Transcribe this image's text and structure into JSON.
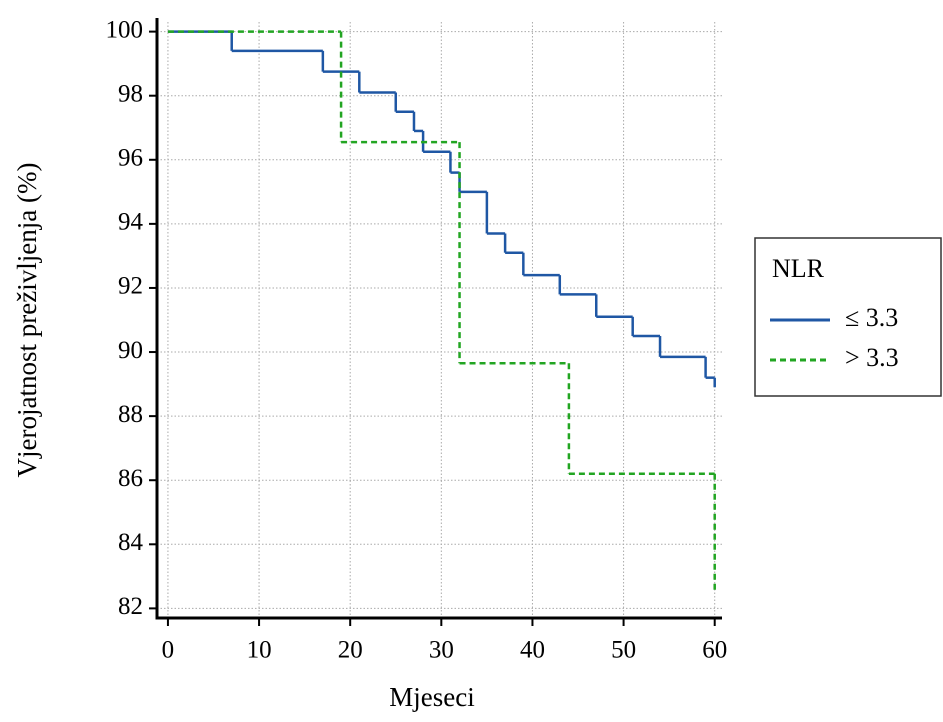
{
  "chart_data": {
    "type": "step",
    "x_label": "Mjeseci",
    "y_label": "Vjerojatnost preživljenja (%)",
    "xlim": [
      -1.2,
      60.8
    ],
    "ylim": [
      81.7,
      100.3
    ],
    "xticks": [
      0,
      10,
      20,
      30,
      40,
      50,
      60
    ],
    "yticks": [
      82,
      84,
      86,
      88,
      90,
      92,
      94,
      96,
      98,
      100
    ],
    "grid": true,
    "legend": {
      "title": "NLR",
      "position": "right"
    },
    "series": [
      {
        "name": "≤ 3.3",
        "color": "#1f57a4",
        "dash": false,
        "x": [
          0,
          7,
          17,
          21,
          25,
          27,
          28,
          31,
          32,
          35,
          37,
          39,
          43,
          47,
          51,
          54,
          59,
          60
        ],
        "values": [
          100,
          99.4,
          98.75,
          98.1,
          97.5,
          96.9,
          96.25,
          95.6,
          95.0,
          93.7,
          93.1,
          92.4,
          91.8,
          91.1,
          90.5,
          89.85,
          89.2,
          88.9
        ]
      },
      {
        "name": "> 3.3",
        "color": "#22a522",
        "dash": true,
        "x": [
          0,
          19,
          32,
          44,
          60
        ],
        "values": [
          100,
          96.55,
          89.65,
          86.2,
          82.5
        ]
      }
    ]
  }
}
